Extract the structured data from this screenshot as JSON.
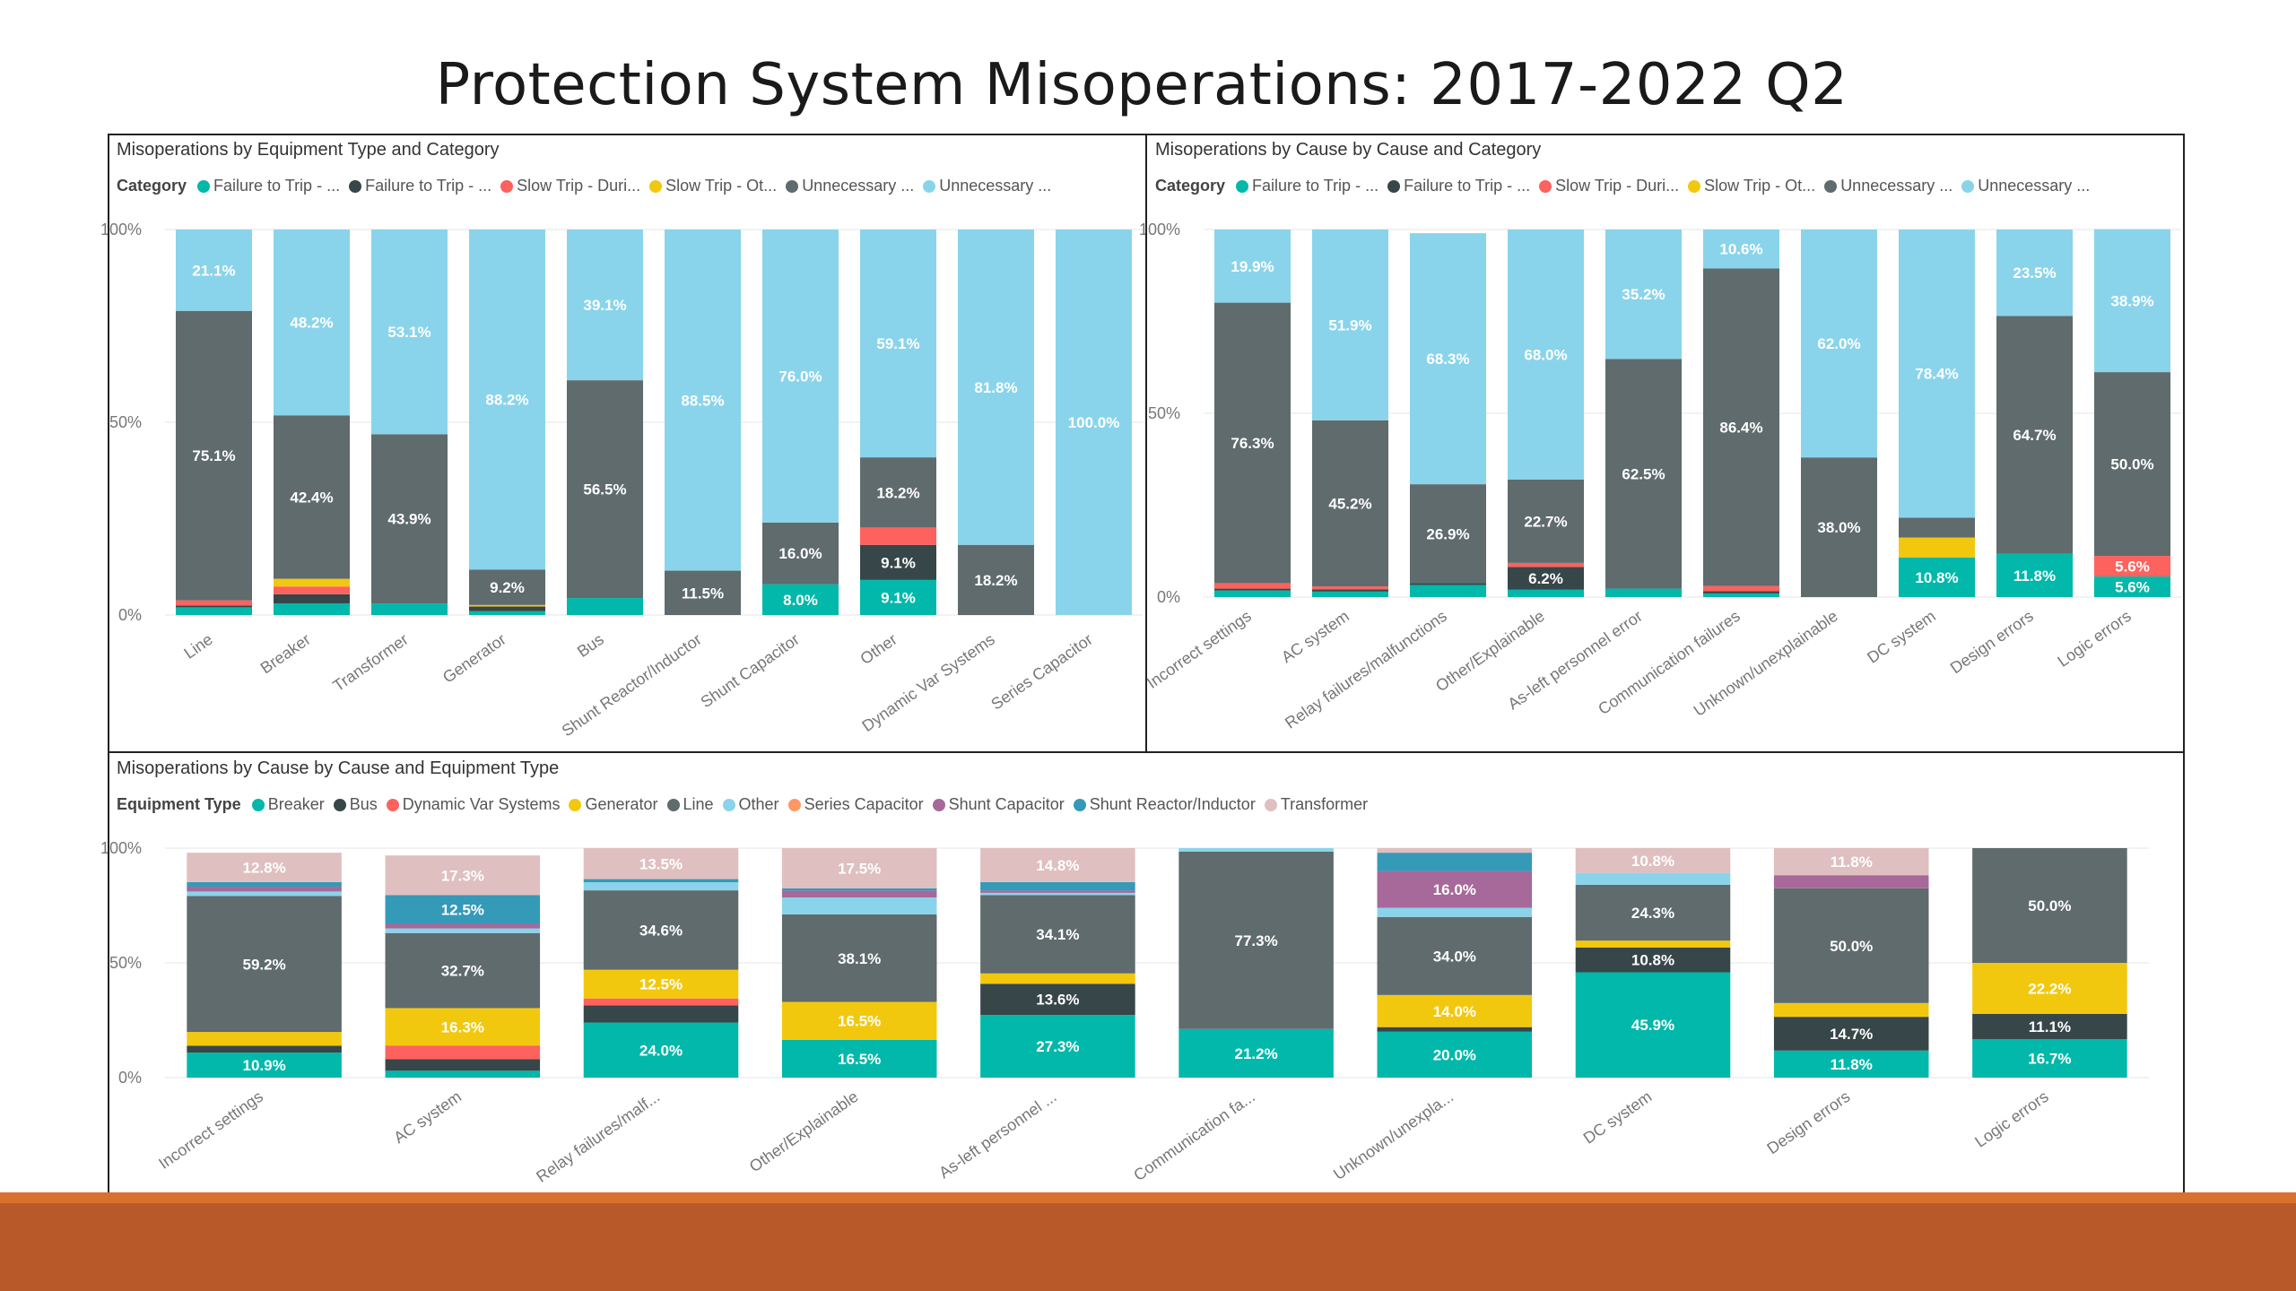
{
  "title": "Protection System Misoperations:  2017-2022 Q2",
  "chart_data": [
    {
      "id": "equipment_category",
      "type": "bar",
      "stacked": "percent",
      "title": "Misoperations by Equipment Type and Category",
      "legend_title": "Category",
      "legend_labels": [
        "Failure to Trip - ...",
        "Failure to Trip - ...",
        "Slow Trip - Duri...",
        "Slow Trip - Ot...",
        "Unnecessary ...",
        "Unnecessary ..."
      ],
      "y_ticks": [
        "0%",
        "50%",
        "100%"
      ],
      "ylim": [
        0,
        100
      ],
      "categories": [
        "Line",
        "Breaker",
        "Transformer",
        "Generator",
        "Bus",
        "Shunt Reactor/Inductor",
        "Shunt Capacitor",
        "Other",
        "Dynamic Var Systems",
        "Series Capacitor"
      ],
      "series": [
        {
          "color": "#01b8aa",
          "values": [
            2.0,
            3.0,
            3.0,
            1.0,
            4.4,
            0,
            8.0,
            9.1,
            0,
            0
          ],
          "labels": [
            "",
            "",
            "",
            "",
            "",
            "",
            "8.0%",
            "9.1%",
            "",
            ""
          ]
        },
        {
          "color": "#374649",
          "values": [
            0.5,
            2.4,
            0,
            1.2,
            0,
            0,
            0,
            9.1,
            0,
            0
          ],
          "labels": [
            "",
            "",
            "",
            "",
            "",
            "",
            "",
            "9.1%",
            "",
            ""
          ]
        },
        {
          "color": "#fd625e",
          "values": [
            1.3,
            2.0,
            0,
            0,
            0,
            0,
            0,
            4.5,
            0,
            0
          ],
          "labels": [
            "",
            "",
            "",
            "",
            "",
            "",
            "",
            "",
            "",
            ""
          ]
        },
        {
          "color": "#f2c80f",
          "values": [
            0,
            2.0,
            0,
            0.4,
            0,
            0,
            0,
            0,
            0,
            0
          ],
          "labels": [
            "",
            "",
            "",
            "",
            "",
            "",
            "",
            "",
            "",
            ""
          ]
        },
        {
          "color": "#5f6b6d",
          "values": [
            75.1,
            42.4,
            43.9,
            9.2,
            56.5,
            11.5,
            16.0,
            18.2,
            18.2,
            0
          ],
          "labels": [
            "75.1%",
            "42.4%",
            "43.9%",
            "9.2%",
            "56.5%",
            "11.5%",
            "16.0%",
            "18.2%",
            "18.2%",
            ""
          ]
        },
        {
          "color": "#8ad4eb",
          "values": [
            21.1,
            48.2,
            53.1,
            88.2,
            39.1,
            88.5,
            76.0,
            59.1,
            81.8,
            100.0
          ],
          "labels": [
            "21.1%",
            "48.2%",
            "53.1%",
            "88.2%",
            "39.1%",
            "88.5%",
            "76.0%",
            "59.1%",
            "81.8%",
            "100.0%"
          ]
        }
      ]
    },
    {
      "id": "cause_category",
      "type": "bar",
      "stacked": "percent",
      "title": "Misoperations by Cause by Cause and Category",
      "legend_title": "Category",
      "legend_labels": [
        "Failure to Trip - ...",
        "Failure to Trip - ...",
        "Slow Trip - Duri...",
        "Slow Trip - Ot...",
        "Unnecessary ...",
        "Unnecessary ..."
      ],
      "y_ticks": [
        "0%",
        "50%",
        "100%"
      ],
      "ylim": [
        0,
        100
      ],
      "categories": [
        "Incorrect settings",
        "AC system",
        "Relay failures/malfunctions",
        "Other/Explainable",
        "As-left personnel error",
        "Communication failures",
        "Unknown/unexplainable",
        "DC system",
        "Design errors",
        "Logic errors"
      ],
      "series": [
        {
          "color": "#01b8aa",
          "values": [
            1.8,
            1.5,
            3.3,
            2.0,
            2.3,
            1.0,
            0,
            10.8,
            11.8,
            5.6
          ],
          "labels": [
            "",
            "",
            "",
            "",
            "",
            "",
            "",
            "10.8%",
            "11.8%",
            "5.6%"
          ]
        },
        {
          "color": "#374649",
          "values": [
            0.5,
            0.6,
            0.5,
            6.2,
            0,
            0.6,
            0,
            0,
            0,
            0
          ],
          "labels": [
            "",
            "",
            "",
            "6.2%",
            "",
            "",
            "",
            "",
            "",
            ""
          ]
        },
        {
          "color": "#fd625e",
          "values": [
            1.5,
            0.8,
            0,
            1.1,
            0,
            1.4,
            0,
            0,
            0,
            5.6
          ],
          "labels": [
            "",
            "",
            "",
            "",
            "",
            "",
            "",
            "",
            "",
            "5.6%"
          ]
        },
        {
          "color": "#f2c80f",
          "values": [
            0,
            0,
            0,
            0,
            0,
            0,
            0,
            5.4,
            0,
            0
          ],
          "labels": [
            "",
            "",
            "",
            "",
            "",
            "",
            "",
            "",
            "",
            ""
          ]
        },
        {
          "color": "#5f6b6d",
          "values": [
            76.3,
            45.2,
            26.9,
            22.7,
            62.5,
            86.4,
            38.0,
            5.4,
            64.7,
            50.0
          ],
          "labels": [
            "76.3%",
            "45.2%",
            "26.9%",
            "22.7%",
            "62.5%",
            "86.4%",
            "38.0%",
            "",
            "64.7%",
            "50.0%"
          ]
        },
        {
          "color": "#8ad4eb",
          "values": [
            19.9,
            51.9,
            68.3,
            68.0,
            35.2,
            10.6,
            62.0,
            78.4,
            23.5,
            38.9
          ],
          "labels": [
            "19.9%",
            "51.9%",
            "68.3%",
            "68.0%",
            "35.2%",
            "10.6%",
            "62.0%",
            "78.4%",
            "23.5%",
            "38.9%"
          ]
        }
      ]
    },
    {
      "id": "cause_equipment",
      "type": "bar",
      "stacked": "percent",
      "title": "Misoperations by Cause by Cause and Equipment Type",
      "legend_title": "Equipment Type",
      "legend_labels": [
        "Breaker",
        "Bus",
        "Dynamic Var Systems",
        "Generator",
        "Line",
        "Other",
        "Series Capacitor",
        "Shunt Capacitor",
        "Shunt Reactor/Inductor",
        "Transformer"
      ],
      "y_ticks": [
        "0%",
        "50%",
        "100%"
      ],
      "ylim": [
        0,
        100
      ],
      "categories": [
        "Incorrect settings",
        "AC system",
        "Relay failures/malf...",
        "Other/Explainable",
        "As-left personnel ...",
        "Communication fa...",
        "Unknown/unexpla...",
        "DC system",
        "Design errors",
        "Logic errors"
      ],
      "series": [
        {
          "color": "#01b8aa",
          "values": [
            10.9,
            3.0,
            24.0,
            16.5,
            27.3,
            21.2,
            20.0,
            45.9,
            11.8,
            16.7
          ],
          "labels": [
            "10.9%",
            "",
            "24.0%",
            "16.5%",
            "27.3%",
            "21.2%",
            "20.0%",
            "45.9%",
            "11.8%",
            "16.7%"
          ]
        },
        {
          "color": "#374649",
          "values": [
            3.0,
            5.0,
            7.5,
            0,
            13.6,
            0,
            2.0,
            10.8,
            14.7,
            11.1
          ],
          "labels": [
            "",
            "",
            "",
            "",
            "13.6%",
            "",
            "",
            "10.8%",
            "14.7%",
            "11.1%"
          ]
        },
        {
          "color": "#fd625e",
          "values": [
            0,
            6.0,
            3.0,
            0,
            0,
            0,
            0,
            0,
            0,
            0
          ],
          "labels": [
            "",
            "",
            "",
            "",
            "",
            "",
            "",
            "",
            "",
            ""
          ]
        },
        {
          "color": "#f2c80f",
          "values": [
            6.0,
            16.3,
            12.5,
            16.5,
            4.5,
            0,
            14.0,
            3.0,
            6.0,
            22.2
          ],
          "labels": [
            "",
            "16.3%",
            "12.5%",
            "16.5%",
            "",
            "",
            "14.0%",
            "",
            "",
            "22.2%"
          ]
        },
        {
          "color": "#5f6b6d",
          "values": [
            59.2,
            32.7,
            34.6,
            38.1,
            34.1,
            77.3,
            34.0,
            24.3,
            50.0,
            50.0
          ],
          "labels": [
            "59.2%",
            "32.7%",
            "34.6%",
            "38.1%",
            "34.1%",
            "77.3%",
            "34.0%",
            "24.3%",
            "50.0%",
            "50.0%"
          ]
        },
        {
          "color": "#8ad4eb",
          "values": [
            2.0,
            2.0,
            3.5,
            7.4,
            1.0,
            1.5,
            4.0,
            5.2,
            0,
            0
          ],
          "labels": [
            "",
            "",
            "",
            "",
            "",
            "",
            "",
            "",
            "",
            ""
          ]
        },
        {
          "color": "#fe9666",
          "values": [
            0,
            0,
            0,
            0,
            0,
            0,
            0,
            0,
            0,
            0
          ],
          "labels": [
            "",
            "",
            "",
            "",
            "",
            "",
            "",
            "",
            "",
            ""
          ]
        },
        {
          "color": "#a66999",
          "values": [
            2.1,
            2.0,
            0,
            3.0,
            1.0,
            0,
            16.0,
            0,
            5.7,
            0
          ],
          "labels": [
            "",
            "",
            "",
            "",
            "",
            "",
            "16.0%",
            "",
            "",
            ""
          ]
        },
        {
          "color": "#3599b8",
          "values": [
            2.0,
            12.5,
            1.4,
            1.0,
            3.7,
            0,
            8.0,
            0,
            0,
            0
          ],
          "labels": [
            "",
            "12.5%",
            "",
            "",
            "",
            "",
            "",
            "",
            "",
            ""
          ]
        },
        {
          "color": "#dfbfbf",
          "values": [
            12.8,
            17.3,
            13.5,
            17.5,
            14.8,
            0,
            2.0,
            10.8,
            11.8,
            0
          ],
          "labels": [
            "12.8%",
            "17.3%",
            "13.5%",
            "17.5%",
            "14.8%",
            "",
            "",
            "10.8%",
            "11.8%",
            ""
          ]
        }
      ]
    }
  ]
}
